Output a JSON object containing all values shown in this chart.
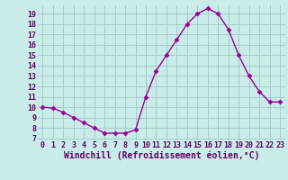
{
  "x": [
    0,
    1,
    2,
    3,
    4,
    5,
    6,
    7,
    8,
    9,
    10,
    11,
    12,
    13,
    14,
    15,
    16,
    17,
    18,
    19,
    20,
    21,
    22,
    23
  ],
  "y": [
    10.0,
    9.9,
    9.5,
    9.0,
    8.5,
    8.0,
    7.5,
    7.5,
    7.5,
    7.8,
    11.0,
    13.5,
    15.0,
    16.5,
    18.0,
    19.0,
    19.5,
    19.0,
    17.5,
    15.0,
    13.0,
    11.5,
    10.5,
    10.5
  ],
  "line_color": "#990099",
  "marker": "D",
  "marker_size": 2.5,
  "xlabel": "Windchill (Refroidissement éolien,°C)",
  "xlabel_fontsize": 7,
  "bg_color": "#c8ece8",
  "grid_color": "#aacccc",
  "xlim": [
    -0.5,
    23.5
  ],
  "ylim": [
    6.8,
    19.8
  ],
  "yticks": [
    7,
    8,
    9,
    10,
    11,
    12,
    13,
    14,
    15,
    16,
    17,
    18,
    19
  ],
  "xticks": [
    0,
    1,
    2,
    3,
    4,
    5,
    6,
    7,
    8,
    9,
    10,
    11,
    12,
    13,
    14,
    15,
    16,
    17,
    18,
    19,
    20,
    21,
    22,
    23
  ],
  "tick_fontsize": 6,
  "linewidth": 1.0
}
